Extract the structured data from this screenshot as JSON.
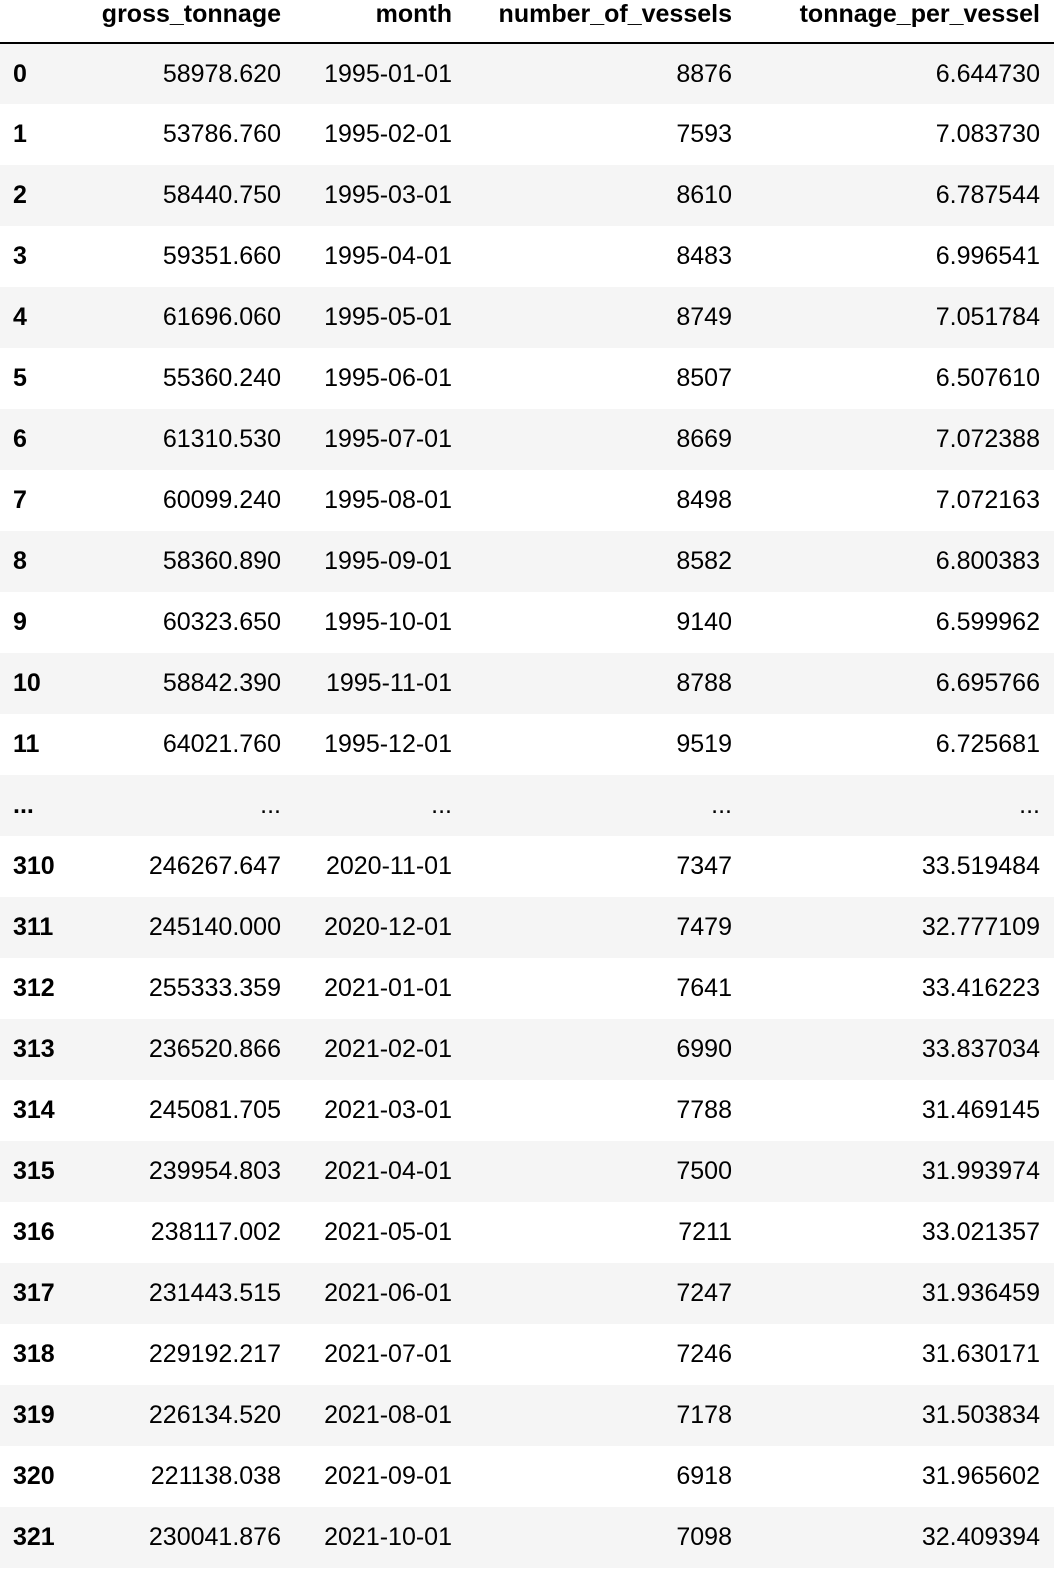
{
  "table": {
    "columns": [
      "",
      "gross_tonnage",
      "month",
      "number_of_vessels",
      "tonnage_per_vessel"
    ],
    "rows": [
      {
        "index": "0",
        "gross_tonnage": "58978.620",
        "month": "1995-01-01",
        "number_of_vessels": "8876",
        "tonnage_per_vessel": "6.644730"
      },
      {
        "index": "1",
        "gross_tonnage": "53786.760",
        "month": "1995-02-01",
        "number_of_vessels": "7593",
        "tonnage_per_vessel": "7.083730"
      },
      {
        "index": "2",
        "gross_tonnage": "58440.750",
        "month": "1995-03-01",
        "number_of_vessels": "8610",
        "tonnage_per_vessel": "6.787544"
      },
      {
        "index": "3",
        "gross_tonnage": "59351.660",
        "month": "1995-04-01",
        "number_of_vessels": "8483",
        "tonnage_per_vessel": "6.996541"
      },
      {
        "index": "4",
        "gross_tonnage": "61696.060",
        "month": "1995-05-01",
        "number_of_vessels": "8749",
        "tonnage_per_vessel": "7.051784"
      },
      {
        "index": "5",
        "gross_tonnage": "55360.240",
        "month": "1995-06-01",
        "number_of_vessels": "8507",
        "tonnage_per_vessel": "6.507610"
      },
      {
        "index": "6",
        "gross_tonnage": "61310.530",
        "month": "1995-07-01",
        "number_of_vessels": "8669",
        "tonnage_per_vessel": "7.072388"
      },
      {
        "index": "7",
        "gross_tonnage": "60099.240",
        "month": "1995-08-01",
        "number_of_vessels": "8498",
        "tonnage_per_vessel": "7.072163"
      },
      {
        "index": "8",
        "gross_tonnage": "58360.890",
        "month": "1995-09-01",
        "number_of_vessels": "8582",
        "tonnage_per_vessel": "6.800383"
      },
      {
        "index": "9",
        "gross_tonnage": "60323.650",
        "month": "1995-10-01",
        "number_of_vessels": "9140",
        "tonnage_per_vessel": "6.599962"
      },
      {
        "index": "10",
        "gross_tonnage": "58842.390",
        "month": "1995-11-01",
        "number_of_vessels": "8788",
        "tonnage_per_vessel": "6.695766"
      },
      {
        "index": "11",
        "gross_tonnage": "64021.760",
        "month": "1995-12-01",
        "number_of_vessels": "9519",
        "tonnage_per_vessel": "6.725681"
      },
      {
        "index": "...",
        "gross_tonnage": "...",
        "month": "...",
        "number_of_vessels": "...",
        "tonnage_per_vessel": "..."
      },
      {
        "index": "310",
        "gross_tonnage": "246267.647",
        "month": "2020-11-01",
        "number_of_vessels": "7347",
        "tonnage_per_vessel": "33.519484"
      },
      {
        "index": "311",
        "gross_tonnage": "245140.000",
        "month": "2020-12-01",
        "number_of_vessels": "7479",
        "tonnage_per_vessel": "32.777109"
      },
      {
        "index": "312",
        "gross_tonnage": "255333.359",
        "month": "2021-01-01",
        "number_of_vessels": "7641",
        "tonnage_per_vessel": "33.416223"
      },
      {
        "index": "313",
        "gross_tonnage": "236520.866",
        "month": "2021-02-01",
        "number_of_vessels": "6990",
        "tonnage_per_vessel": "33.837034"
      },
      {
        "index": "314",
        "gross_tonnage": "245081.705",
        "month": "2021-03-01",
        "number_of_vessels": "7788",
        "tonnage_per_vessel": "31.469145"
      },
      {
        "index": "315",
        "gross_tonnage": "239954.803",
        "month": "2021-04-01",
        "number_of_vessels": "7500",
        "tonnage_per_vessel": "31.993974"
      },
      {
        "index": "316",
        "gross_tonnage": "238117.002",
        "month": "2021-05-01",
        "number_of_vessels": "7211",
        "tonnage_per_vessel": "33.021357"
      },
      {
        "index": "317",
        "gross_tonnage": "231443.515",
        "month": "2021-06-01",
        "number_of_vessels": "7247",
        "tonnage_per_vessel": "31.936459"
      },
      {
        "index": "318",
        "gross_tonnage": "229192.217",
        "month": "2021-07-01",
        "number_of_vessels": "7246",
        "tonnage_per_vessel": "31.630171"
      },
      {
        "index": "319",
        "gross_tonnage": "226134.520",
        "month": "2021-08-01",
        "number_of_vessels": "7178",
        "tonnage_per_vessel": "31.503834"
      },
      {
        "index": "320",
        "gross_tonnage": "221138.038",
        "month": "2021-09-01",
        "number_of_vessels": "6918",
        "tonnage_per_vessel": "31.965602"
      },
      {
        "index": "321",
        "gross_tonnage": "230041.876",
        "month": "2021-10-01",
        "number_of_vessels": "7098",
        "tonnage_per_vessel": "32.409394"
      }
    ]
  },
  "colors": {
    "row_stripe": "#f5f5f5",
    "row_plain": "#ffffff",
    "header_rule": "#000000"
  }
}
